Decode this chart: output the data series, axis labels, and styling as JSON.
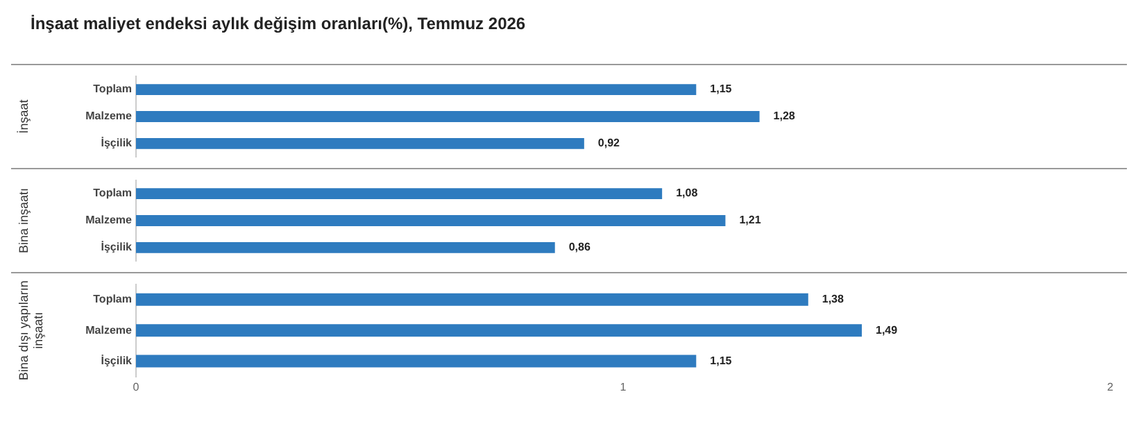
{
  "chart_data": [
    {
      "type": "bar",
      "title": "İnşaat maliyet endeksi aylık değişim oranları(%), Temmuz 2026",
      "orientation": "horizontal",
      "ylabel": "İnşaat",
      "categories": [
        "Toplam",
        "Malzeme",
        "İşçilik"
      ],
      "series": [
        {
          "color": "#2e7bbf",
          "values": [
            1.15,
            1.28,
            0.92
          ],
          "value_labels": [
            "1,15",
            "1,28",
            "0,92"
          ]
        }
      ],
      "xlim": [
        0,
        2
      ],
      "xticks": [
        0,
        1,
        2
      ],
      "tick_labels": "y",
      "grid": false,
      "legend": false
    },
    {
      "type": "bar",
      "orientation": "horizontal",
      "ylabel": "Bina inşaatı",
      "categories": [
        "Toplam",
        "Malzeme",
        "İşçilik"
      ],
      "series": [
        {
          "color": "#2e7bbf",
          "values": [
            1.08,
            1.21,
            0.86
          ],
          "value_labels": [
            "1,08",
            "1,21",
            "0,86"
          ]
        }
      ],
      "xlim": [
        0,
        2
      ],
      "xticks": [
        0,
        1,
        2
      ],
      "tick_labels": "y",
      "grid": false,
      "legend": false
    },
    {
      "type": "bar",
      "orientation": "horizontal",
      "ylabel": "Bina dışı yapıların inşaatı",
      "categories": [
        "Toplam",
        "Malzeme",
        "İşçilik"
      ],
      "series": [
        {
          "color": "#2e7bbf",
          "values": [
            1.38,
            1.49,
            1.15
          ],
          "value_labels": [
            "1,38",
            "1,49",
            "1,15"
          ]
        }
      ],
      "xlim": [
        0,
        2
      ],
      "xticks": [
        0,
        1,
        2
      ],
      "grid": false,
      "legend": false
    }
  ]
}
